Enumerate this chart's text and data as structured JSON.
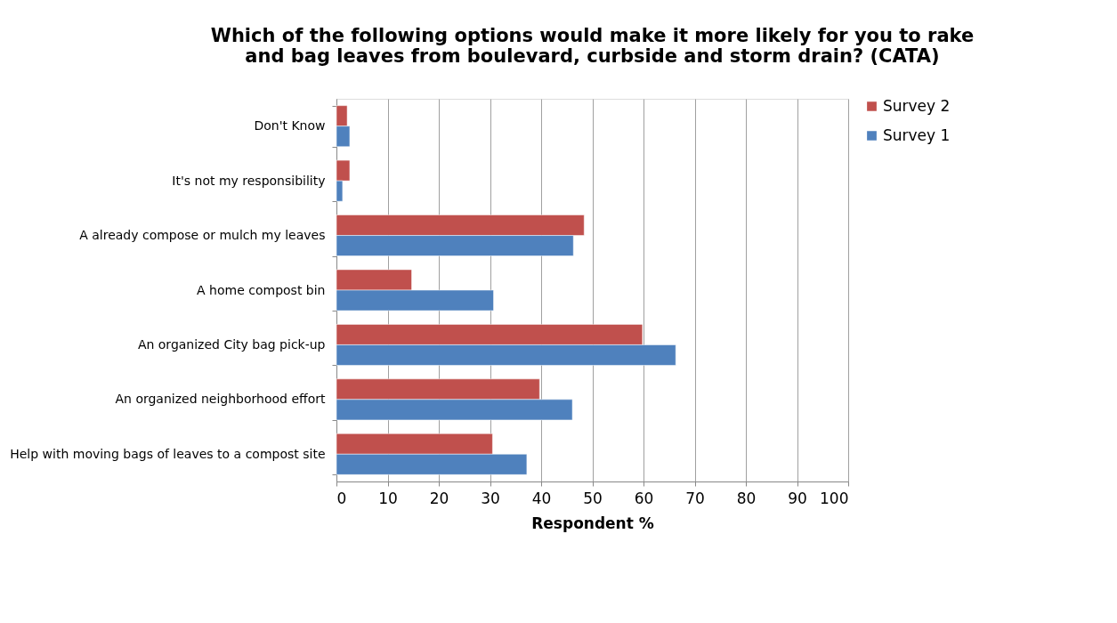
{
  "chart_data": {
    "type": "bar",
    "orientation": "horizontal",
    "title": [
      "Which of the following options would make it more likely for you to rake",
      "and bag leaves from boulevard, curbside and storm drain? (CATA)"
    ],
    "xlabel": "Respondent %",
    "categories": [
      "Don't Know",
      "It's not my responsibility",
      "A already compose or mulch my leaves",
      "A home compost bin",
      "An organized City bag pick-up",
      "An organized neighborhood effort",
      "Help with moving bags of leaves to a compost site"
    ],
    "series": [
      {
        "name": "Survey 2",
        "color": "#c0504d",
        "values": [
          2.1,
          2.6,
          48.4,
          14.7,
          59.8,
          39.7,
          30.5
        ]
      },
      {
        "name": "Survey 1",
        "color": "#4f81bd",
        "values": [
          2.6,
          1.2,
          46.3,
          30.7,
          66.3,
          46.1,
          37.2
        ]
      }
    ],
    "xlim": [
      0,
      100
    ],
    "xticks": [
      0,
      10,
      20,
      30,
      40,
      50,
      60,
      70,
      80,
      90,
      100
    ],
    "grid": "x",
    "legend": "right"
  }
}
